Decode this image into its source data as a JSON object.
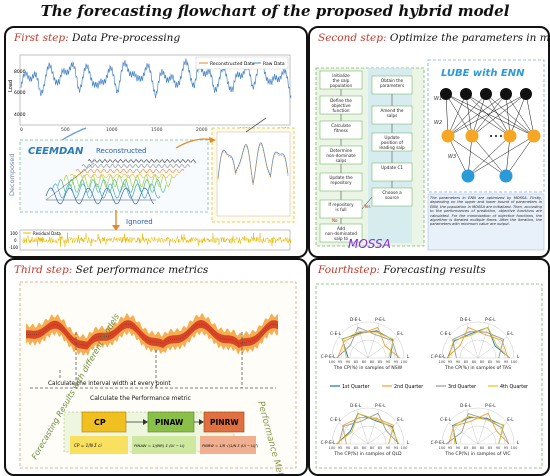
{
  "title": "The forecasting flowchart of the proposed hybrid model",
  "step1": {
    "step": "First step:",
    "desc": "Data Pre-processing",
    "legend_recon": "Reconstructed Data",
    "legend_raw": "Raw Data",
    "ylabel": "Load",
    "x_ticks": [
      "0",
      "500",
      "1000",
      "1500",
      "2000",
      "2500",
      "3000"
    ],
    "y_ticks": [
      "8000",
      "6000",
      "4000"
    ],
    "ceemdan": "CEEMDAN",
    "reconstructed": "Reconstructed",
    "decomposed": "Decomposed",
    "ignored": "Ignored",
    "residual_legend": "Residual Data",
    "residual_ticks": [
      "100",
      "0",
      "-100"
    ]
  },
  "step2": {
    "step": "Second step:",
    "desc": "Optimize the parameters in model",
    "flow_left": [
      "Initialize the salp population",
      "Define the objective function",
      "Calculate fitness",
      "Determine non-dominate salps",
      "Update the repository",
      "If repository is full",
      "Add non-dominated salp to repository"
    ],
    "flow_right": [
      "Obtain the parameters",
      "Amend the salps",
      "Update position of leading salp",
      "Update C1",
      "Choose a source"
    ],
    "yes": "Yes",
    "no": "No",
    "mossa": "MOSSA",
    "lube": "LUBE with ENN",
    "weights": [
      "W1",
      "W2",
      "W3"
    ],
    "note": "The parameters in ENN are optimized by MOSSA. Firstly, depending on the upper and lower bound of parameters in ENN, the population in MOSSA are initialized. Then, according to the performances of prediction, objective functions are calculated. For the minimization of objective functions, the algorithm is iterated multiple times. After the iteration, the parameters with minimum value are output."
  },
  "step3": {
    "step": "Third step:",
    "desc": "Set performance metrics",
    "calc_interval": "Calculate the interval width at every point",
    "calc_perf": "Calculate the Performance metric",
    "side_left": "Forecasting Results with different models",
    "side_right": "Performance Metric",
    "metrics": [
      "CP",
      "PINAW",
      "PINRW"
    ],
    "formulas": [
      "CP = 1/N Σ ci",
      "PINAW = 1/(NR) Σ (Ui − Li)",
      "PINRW = 1/R √(1/N Σ (Ui − Li)²)"
    ]
  },
  "step4": {
    "step": "Fourthstep:",
    "desc": "Forecasting results",
    "axis_labels": [
      "C-P-E-L",
      "C-E-L",
      "D-E-L",
      "P-E-L",
      "E-L",
      "L"
    ],
    "rad_ticks": [
      "100",
      "95",
      "90",
      "85",
      "80",
      "80",
      "85",
      "90",
      "95",
      "100"
    ],
    "captions": [
      "The CP(%) in samples of NSW",
      "The CP(%) in samples of TAS",
      "The CP(%) in samples of QLD",
      "The CP(%) in samples of VIC"
    ],
    "legend": [
      "1st Quarter",
      "2nd Quarter",
      "3rd Quarter",
      "4th Quarter"
    ],
    "colors": [
      "#1f77b4",
      "#f0a030",
      "#9b9b9b",
      "#e8c020"
    ]
  }
}
